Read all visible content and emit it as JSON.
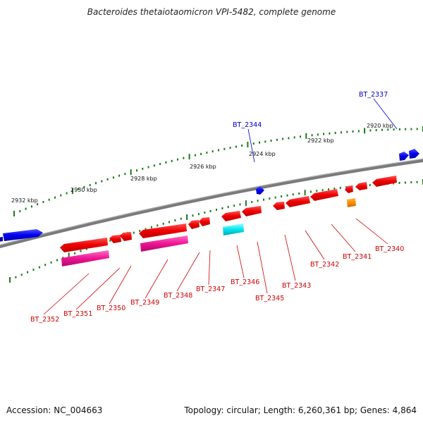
{
  "title": "Bacteroides thetaiotaomicron VPI-5482, complete genome",
  "footer": {
    "accession": "Accession: NC_004663",
    "summary": "Topology: circular; Length: 6,260,361 bp; Genes: 4,864"
  },
  "scale_labels": [
    "2932 kbp",
    "2930 kbp",
    "2928 kbp",
    "2926 kbp",
    "2924 kbp",
    "2922 kbp",
    "2920 kbp"
  ],
  "genes": [
    {
      "name": "BT_2337",
      "strand": "forward",
      "color": "#0000ee"
    },
    {
      "name": "BT_2344",
      "strand": "forward",
      "color": "#0000ee"
    },
    {
      "name": "BT_2340",
      "strand": "reverse",
      "color": "#ee0000"
    },
    {
      "name": "BT_2341",
      "strand": "reverse",
      "color": "#ee0000"
    },
    {
      "name": "BT_2342",
      "strand": "reverse",
      "color": "#ee0000"
    },
    {
      "name": "BT_2343",
      "strand": "reverse",
      "color": "#ee0000"
    },
    {
      "name": "BT_2345",
      "strand": "reverse",
      "color": "#ee0000"
    },
    {
      "name": "BT_2346",
      "strand": "reverse",
      "color": "#ee0000"
    },
    {
      "name": "BT_2347",
      "strand": "reverse",
      "color": "#ee0000"
    },
    {
      "name": "BT_2348",
      "strand": "reverse",
      "color": "#ee0000"
    },
    {
      "name": "BT_2349",
      "strand": "reverse",
      "color": "#ee0000"
    },
    {
      "name": "BT_2350",
      "strand": "reverse",
      "color": "#ee0000"
    },
    {
      "name": "BT_2351",
      "strand": "reverse",
      "color": "#ee0000"
    },
    {
      "name": "BT_2352",
      "strand": "reverse",
      "color": "#ee0000"
    }
  ],
  "feature_colors": {
    "forward_gene": "#0000ee",
    "reverse_gene": "#ee0000",
    "cds_pink": "#ee1493",
    "cds_cyan": "#00e5ee",
    "cds_orange": "#ff8c00",
    "backbone": "#808080",
    "tick": "#1a7a1a"
  }
}
